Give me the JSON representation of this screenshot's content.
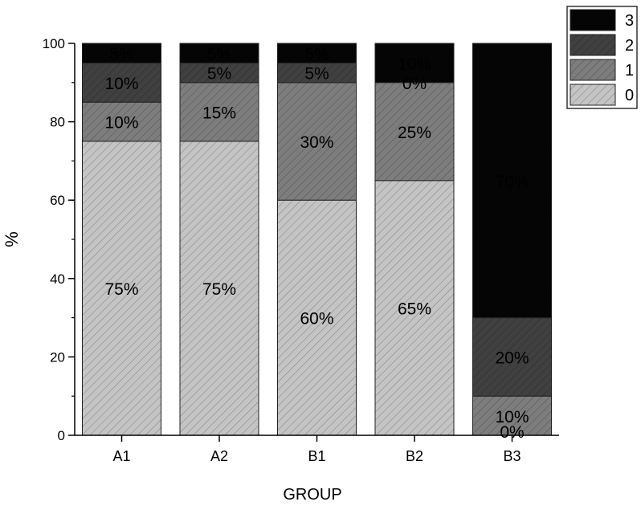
{
  "chart_data": {
    "type": "bar",
    "stacked": true,
    "xlabel": "GROUP",
    "ylabel": "%",
    "ylim": [
      0,
      100
    ],
    "yticks": [
      0,
      20,
      40,
      60,
      80,
      100
    ],
    "categories": [
      "A1",
      "A2",
      "B1",
      "B2",
      "B3"
    ],
    "series": [
      {
        "name": "0",
        "values": [
          75,
          75,
          60,
          65,
          0
        ],
        "labels": [
          "75%",
          "75%",
          "60%",
          "65%",
          "0%"
        ],
        "color": "#c4c4c4"
      },
      {
        "name": "1",
        "values": [
          10,
          15,
          30,
          25,
          10
        ],
        "labels": [
          "10%",
          "15%",
          "30%",
          "25%",
          "10%"
        ],
        "color": "#7d7d7d"
      },
      {
        "name": "2",
        "values": [
          10,
          5,
          5,
          0,
          20
        ],
        "labels": [
          "10%",
          "5%",
          "5%",
          "0%",
          "20%"
        ],
        "color": "#404040"
      },
      {
        "name": "3",
        "values": [
          5,
          5,
          5,
          10,
          70
        ],
        "labels": [
          "5%",
          "5%",
          "5%",
          "10%",
          "70%"
        ],
        "color": "#050505"
      }
    ],
    "legend": {
      "position": "top-right",
      "order": [
        "3",
        "2",
        "1",
        "0"
      ]
    },
    "grid": false
  }
}
